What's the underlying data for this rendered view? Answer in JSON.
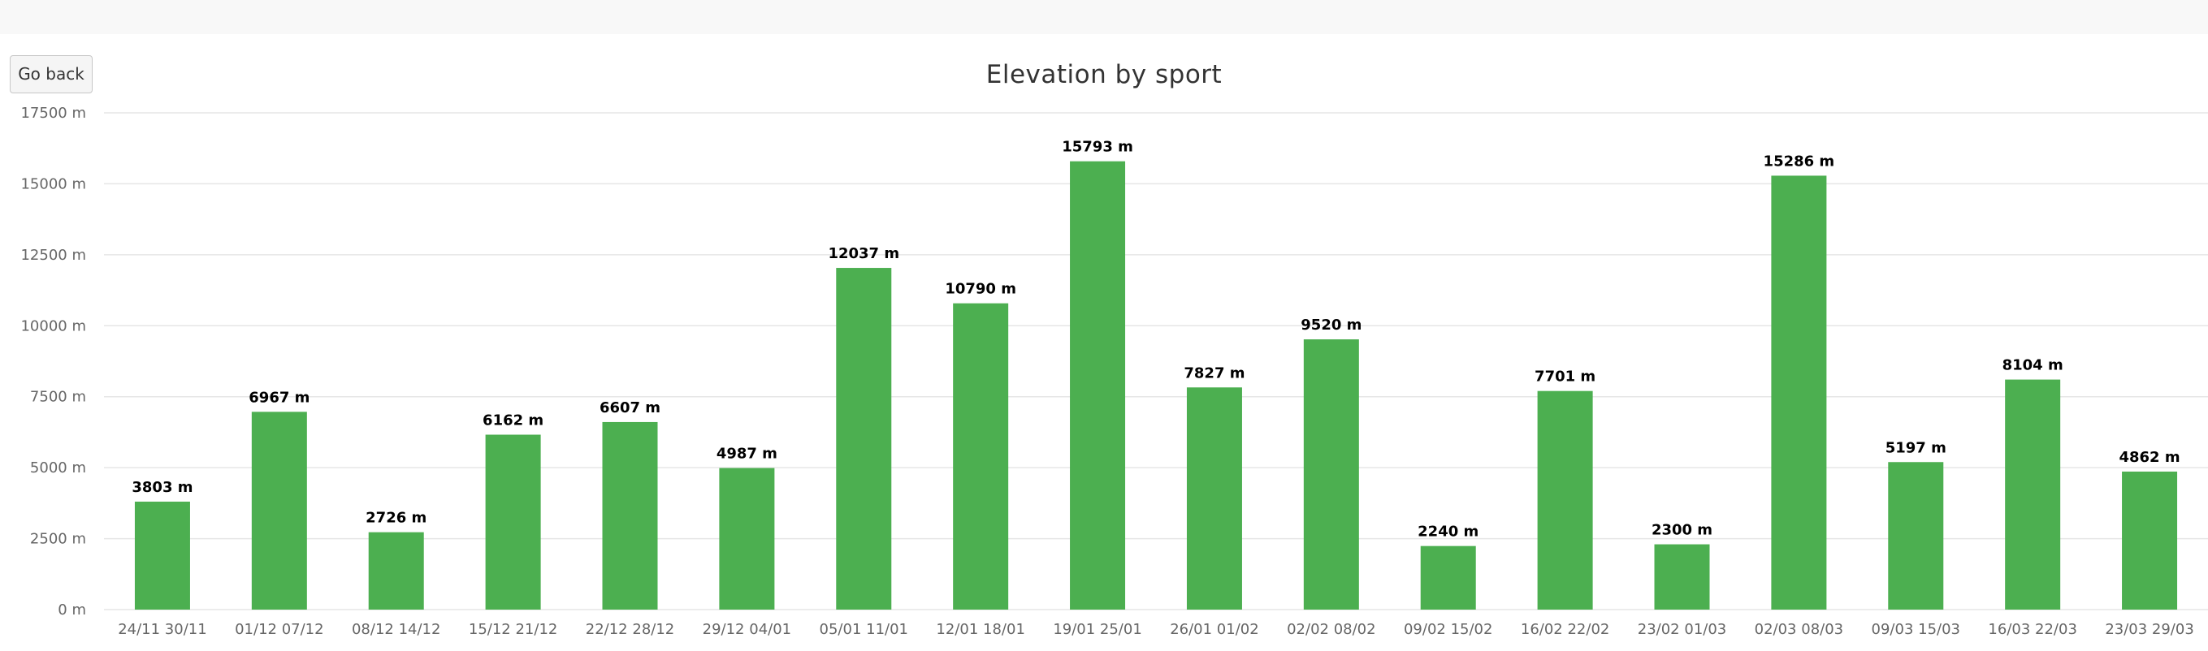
{
  "page": {
    "go_back_label": "Go back"
  },
  "chart_data": {
    "type": "bar",
    "title": "Elevation by sport",
    "xlabel": "",
    "ylabel": "",
    "unit": "m",
    "ylim": [
      0,
      17500
    ],
    "yticks": [
      0,
      2500,
      5000,
      7500,
      10000,
      12500,
      15000,
      17500
    ],
    "ytick_labels": [
      "0 m",
      "2500 m",
      "5000 m",
      "7500 m",
      "10000 m",
      "12500 m",
      "15000 m",
      "17500 m"
    ],
    "bar_color": "#4caf50",
    "grid": true,
    "categories": [
      "24/11 30/11",
      "01/12 07/12",
      "08/12 14/12",
      "15/12 21/12",
      "22/12 28/12",
      "29/12 04/01",
      "05/01 11/01",
      "12/01 18/01",
      "19/01 25/01",
      "26/01 01/02",
      "02/02 08/02",
      "09/02 15/02",
      "16/02 22/02",
      "23/02 01/03",
      "02/03 08/03",
      "09/03 15/03",
      "16/03 22/03",
      "23/03 29/03"
    ],
    "values": [
      3803,
      6967,
      2726,
      6162,
      6607,
      4987,
      12037,
      10790,
      15793,
      7827,
      9520,
      2240,
      7701,
      2300,
      15286,
      5197,
      8104,
      4862
    ],
    "labels": [
      "3803 m",
      "6967 m",
      "2726 m",
      "6162 m",
      "6607 m",
      "4987 m",
      "12037 m",
      "10790 m",
      "15793 m",
      "7827 m",
      "9520 m",
      "2240 m",
      "7701 m",
      "2300 m",
      "15286 m",
      "5197 m",
      "8104 m",
      "4862 m"
    ]
  }
}
